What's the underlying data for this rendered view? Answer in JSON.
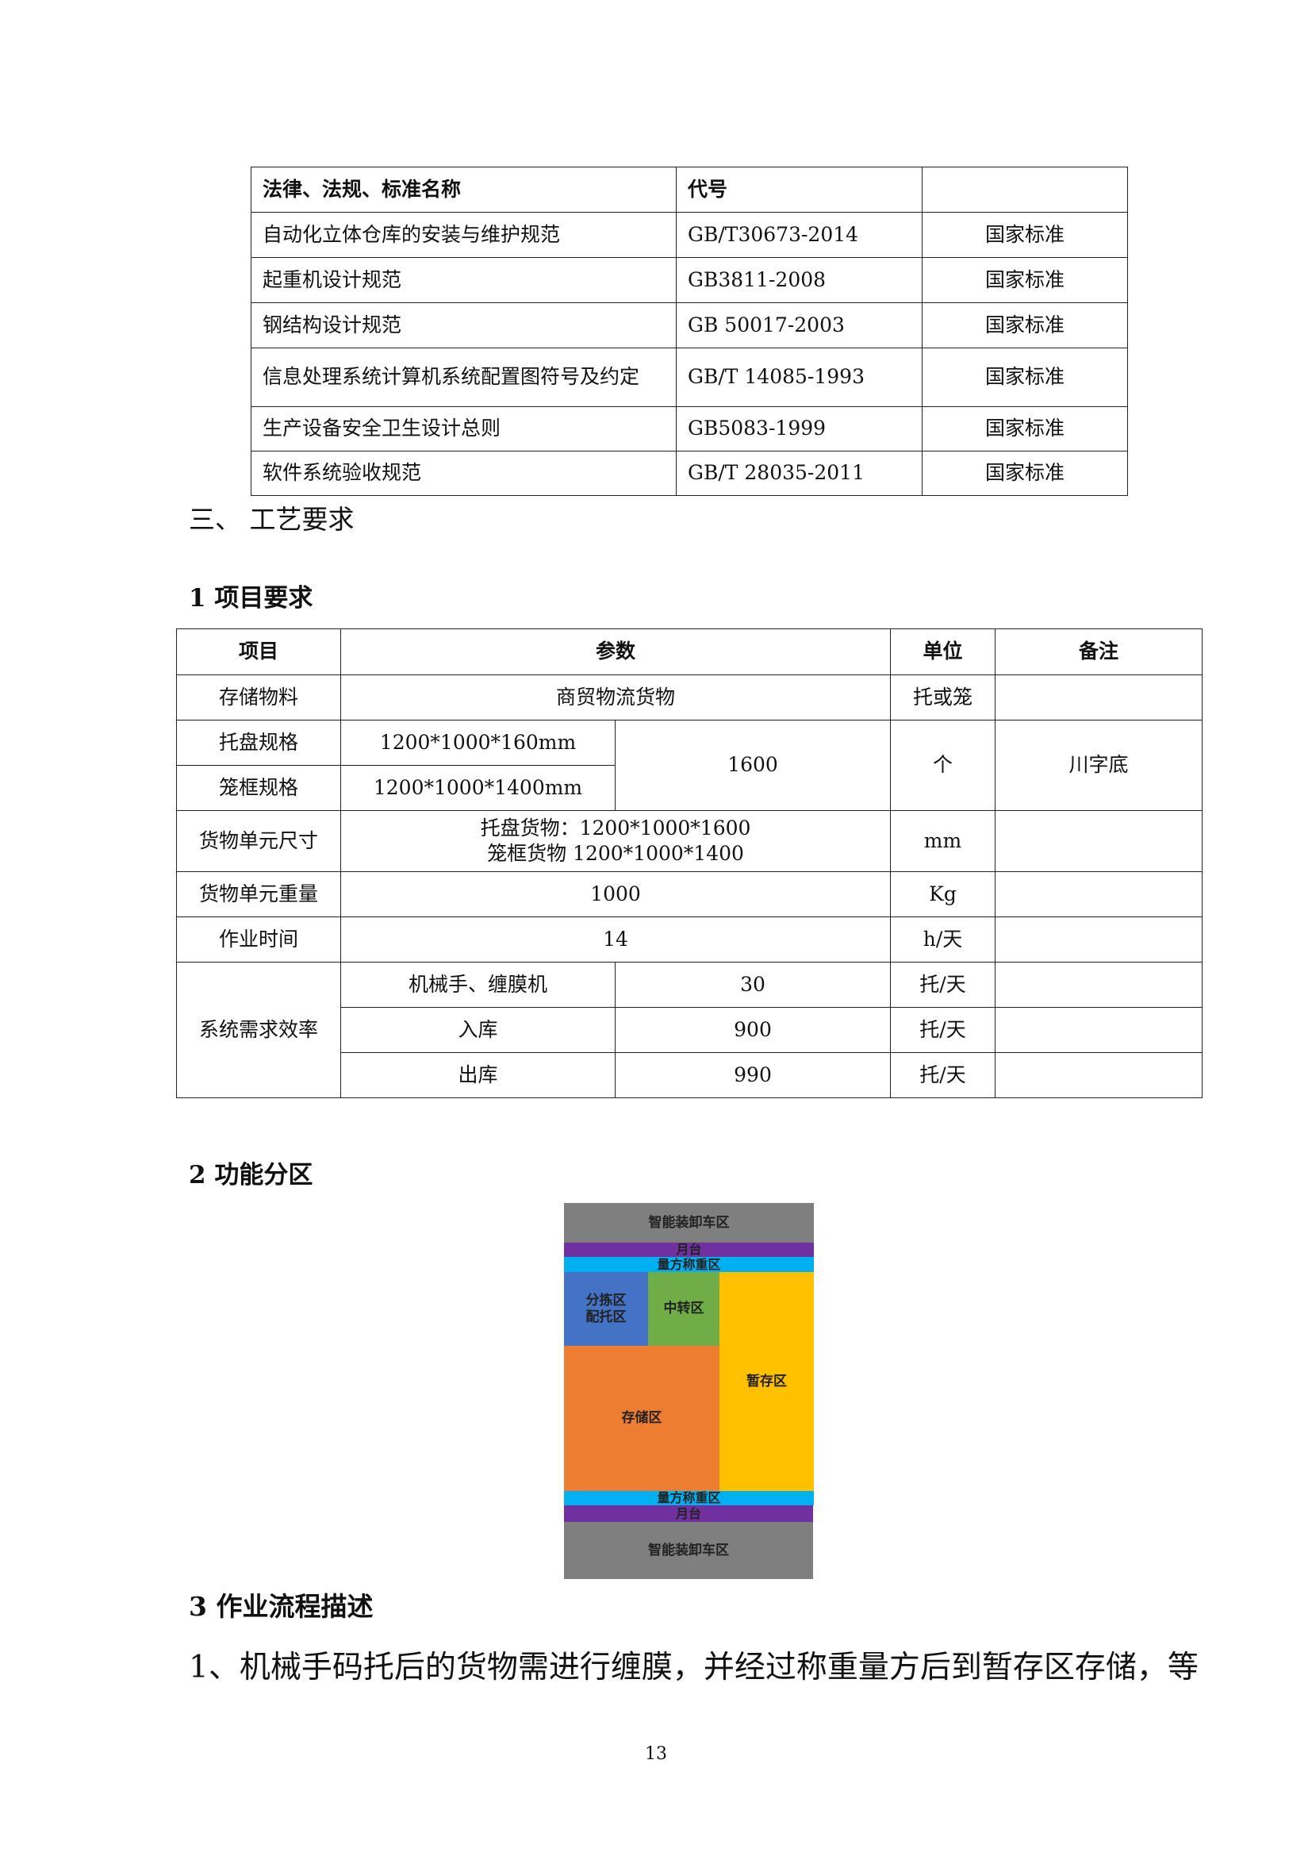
{
  "standards_table": {
    "headers": [
      "法律、法规、标准名称",
      "代号",
      ""
    ],
    "rows": [
      [
        "自动化立体仓库的安装与维护规范",
        "GB/T30673-2014",
        "国家标准"
      ],
      [
        "起重机设计规范",
        "GB3811-2008",
        "国家标准"
      ],
      [
        "钢结构设计规范",
        "GB 50017-2003",
        "国家标准"
      ],
      [
        "信息处理系统计算机系统配置图符号及约定",
        "GB/T 14085-1993",
        "国家标准"
      ],
      [
        "生产设备安全卫生设计总则",
        "GB5083-1999",
        "国家标准"
      ],
      [
        "软件系统验收规范",
        "GB/T 28035-2011",
        "国家标准"
      ]
    ]
  },
  "section3_title": "三、  工艺要求",
  "sub1_title": "1   项目要求",
  "req_table": {
    "headers": [
      "项目",
      "参数",
      "单位",
      "备注"
    ],
    "storage": {
      "label": "存储物料",
      "value": "商贸物流货物",
      "unit": "托或笼"
    },
    "pallet": {
      "label": "托盘规格",
      "value": "1200*1000*160mm"
    },
    "cage": {
      "label": "笼框规格",
      "value": "1200*1000*1400mm"
    },
    "qty": "1600",
    "qty_unit": "个",
    "qty_note": "川字底",
    "unit_size": {
      "label": "货物单元尺寸",
      "line1": "托盘货物：1200*1000*1600",
      "line2": "笼框货物 1200*1000*1400",
      "unit": "mm"
    },
    "unit_weight": {
      "label": "货物单元重量",
      "value": "1000",
      "unit": "Kg"
    },
    "work_time": {
      "label": "作业时间",
      "value": "14",
      "unit": "h/天"
    },
    "efficiency": {
      "label": "系统需求效率",
      "rows": [
        {
          "name": "机械手、缠膜机",
          "value": "30",
          "unit": "托/天"
        },
        {
          "name": "入库",
          "value": "900",
          "unit": "托/天"
        },
        {
          "name": "出库",
          "value": "990",
          "unit": "托/天"
        }
      ]
    }
  },
  "sub2_title": "2   功能分区",
  "zones": {
    "loading_top": "智能装卸车区",
    "platform_top": "月台",
    "weigh_top": "量方称重区",
    "sorting": "分拣区",
    "pallet_assembly": "配托区",
    "transfer": "中转区",
    "temp": "暂存区",
    "storage": "存储区",
    "weigh_bottom": "量方称重区",
    "platform_bottom": "月台",
    "loading_bottom": "智能装卸车区",
    "colors": {
      "gray": "#7f7f7f",
      "purple": "#7030a0",
      "cyan": "#00b0f0",
      "blue": "#4472c4",
      "green": "#70ad47",
      "orange": "#ed7d31",
      "yellow": "#ffc000"
    }
  },
  "sub3_title": "3   作业流程描述",
  "paragraph": "1、机械手码托后的货物需进行缠膜，并经过称重量方后到暂存区存储，等",
  "page_number": "13"
}
